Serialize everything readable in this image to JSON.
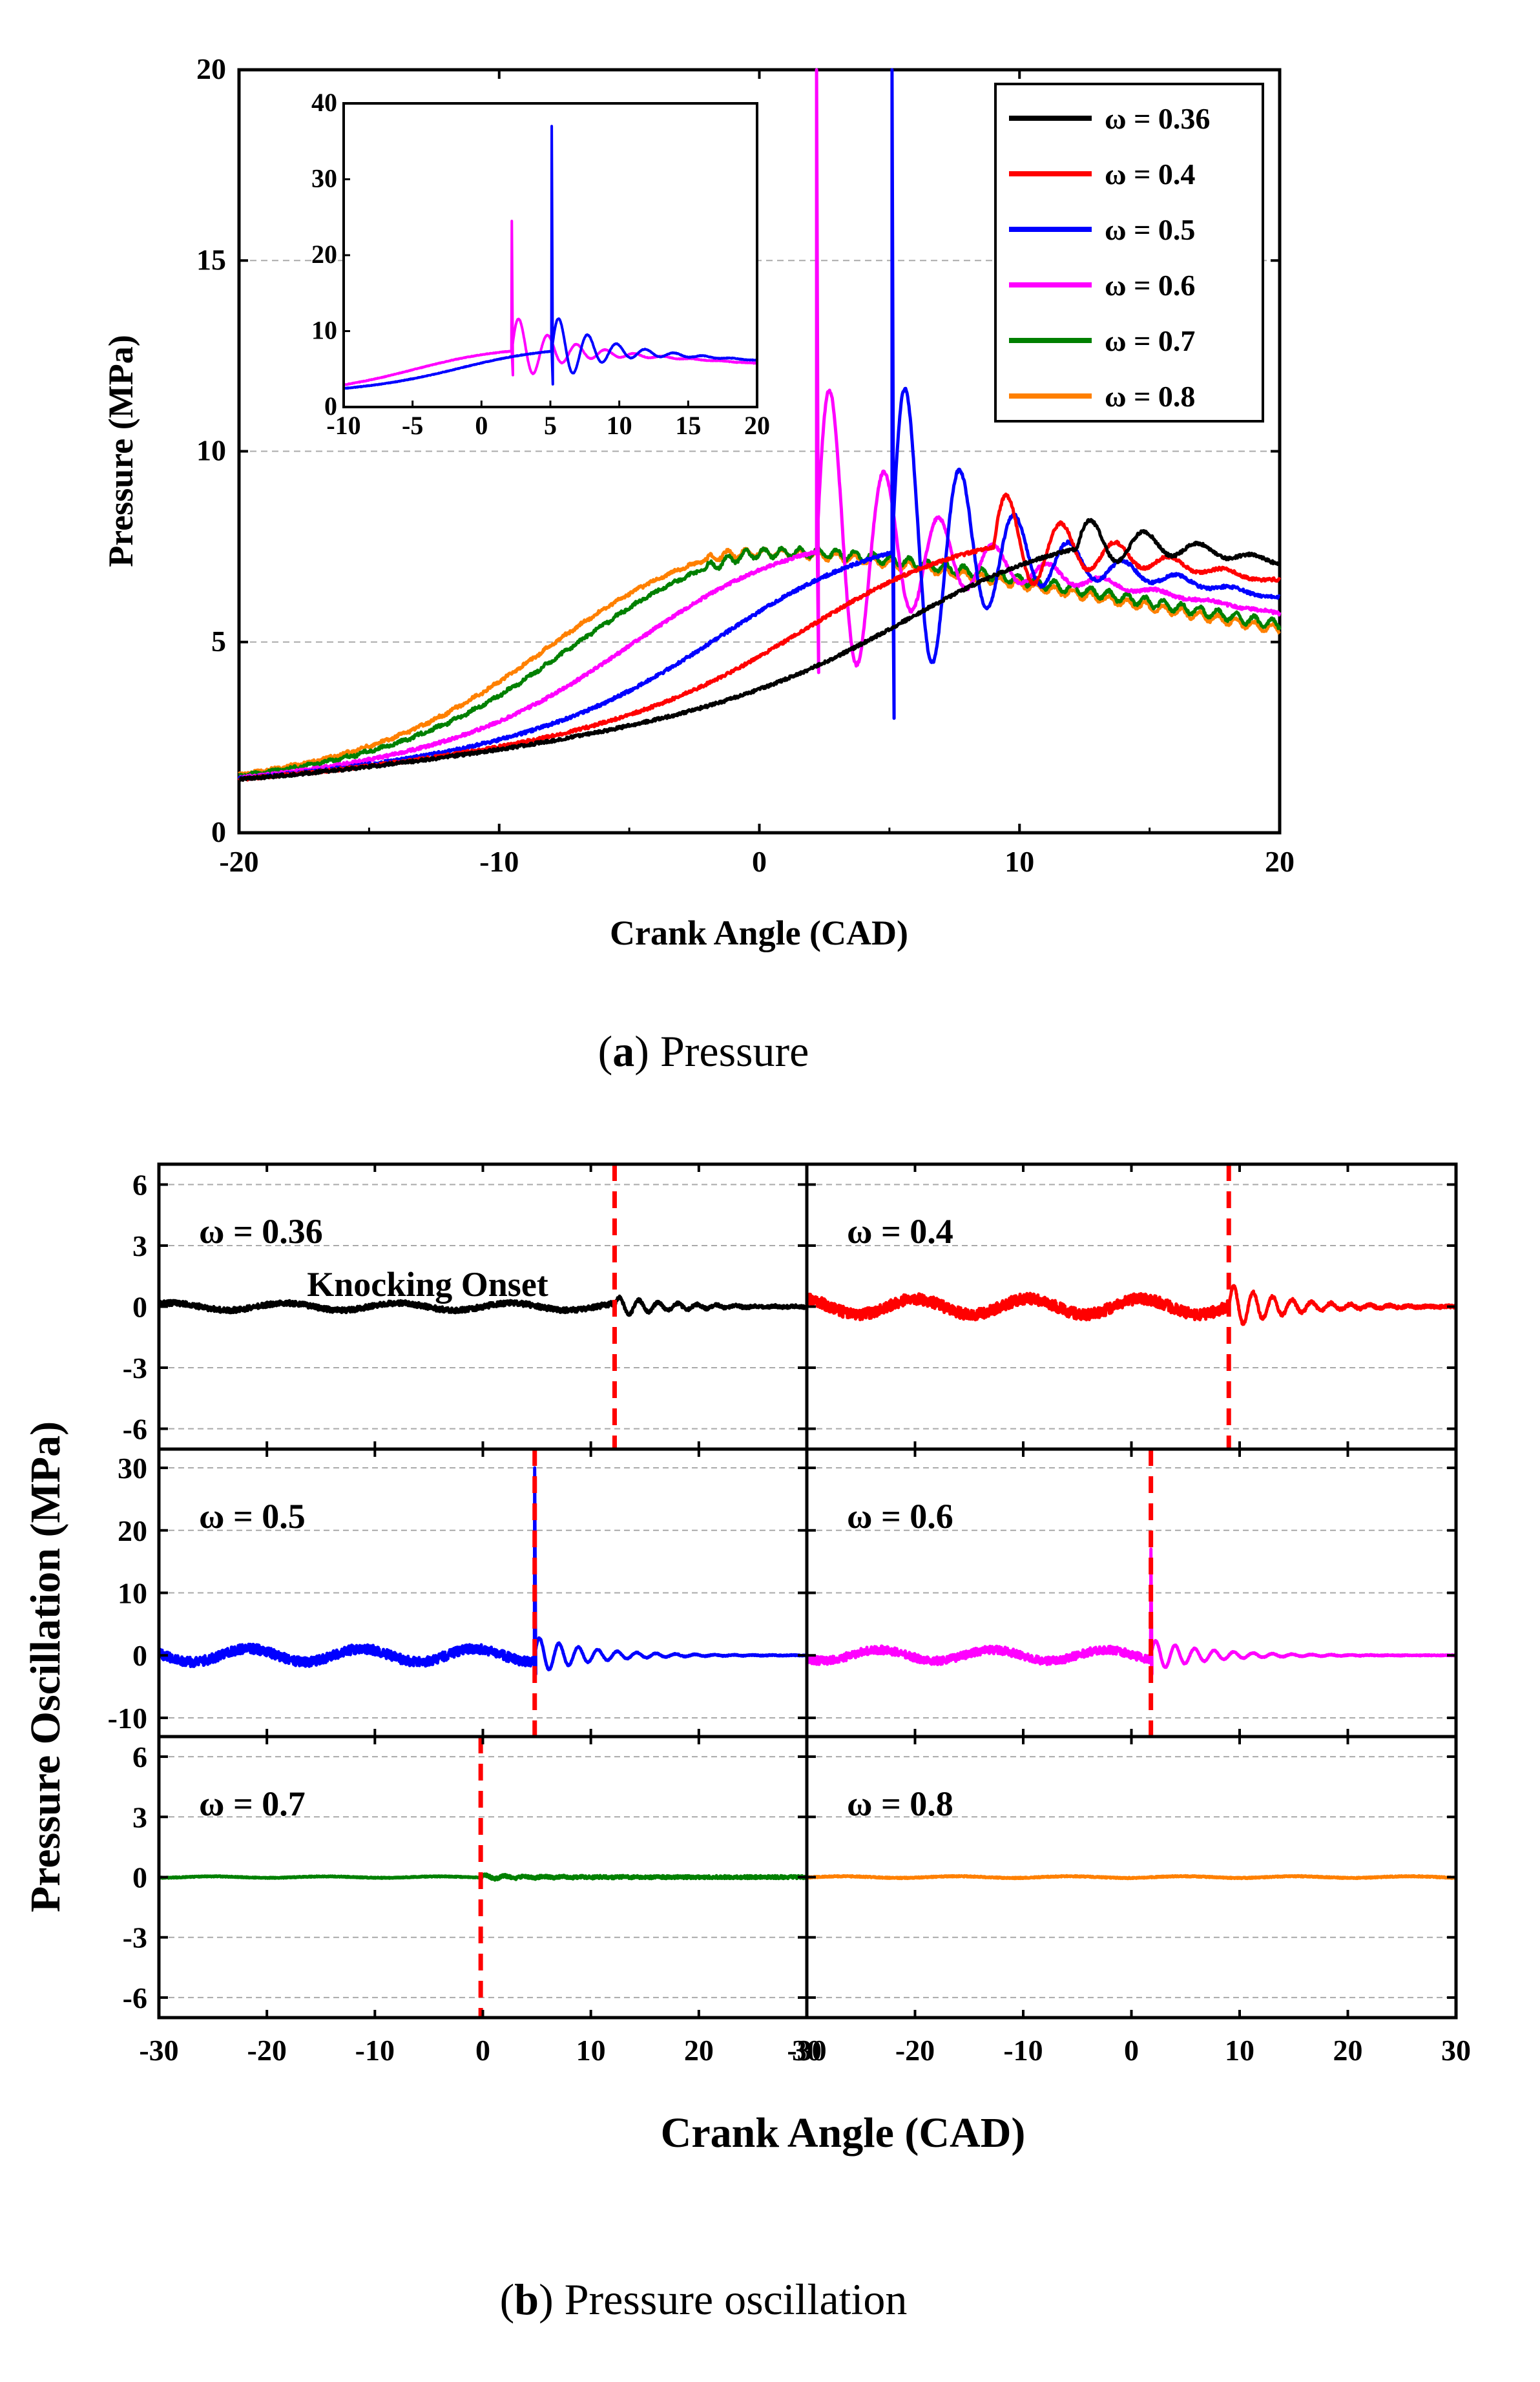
{
  "chart_data": [
    {
      "type": "line",
      "panel": "a",
      "caption_label": "a",
      "caption_text": "Pressure",
      "xlabel": "Crank Angle (CAD)",
      "ylabel": "Pressure (MPa)",
      "xlim": [
        -20,
        20
      ],
      "ylim": [
        0,
        20
      ],
      "xticks": [
        -20,
        -10,
        0,
        10,
        20
      ],
      "yticks": [
        0,
        5,
        10,
        15,
        20
      ],
      "grid": "horizontal dashed",
      "legend_position": "top-right",
      "series": [
        {
          "name": "ω = 0.36",
          "omega": 0.36,
          "color": "#000000",
          "knock_onset": 12.2,
          "peak_shift": 13.3,
          "knock_amp": 0.8
        },
        {
          "name": "ω = 0.4",
          "omega": 0.4,
          "color": "#ff0000",
          "knock_onset": 9.0,
          "peak_shift": 9.0,
          "knock_amp": 1.6
        },
        {
          "name": "ω = 0.5",
          "omega": 0.5,
          "color": "#0000ff",
          "knock_onset": 5.1,
          "peak_shift": 5.5,
          "knock_amp": 5
        },
        {
          "name": "ω = 0.6",
          "omega": 0.6,
          "color": "#ff00ff",
          "knock_onset": 2.2,
          "peak_shift": 2.0,
          "knock_amp": 5
        },
        {
          "name": "ω = 0.7",
          "omega": 0.7,
          "color": "#008000",
          "knock_onset": null,
          "peak_shift": -0.5,
          "knock_amp": 0.3
        },
        {
          "name": "ω = 0.8",
          "omega": 0.8,
          "color": "#ff8000",
          "knock_onset": null,
          "peak_shift": -1.5,
          "knock_amp": 0.25
        }
      ],
      "inset": {
        "xlim": [
          -10,
          20
        ],
        "ylim": [
          0,
          40
        ],
        "xticks": [
          -10,
          -5,
          0,
          5,
          10,
          15,
          20
        ],
        "yticks": [
          0,
          10,
          20,
          30,
          40
        ],
        "series_shown": [
          "ω = 0.5",
          "ω = 0.6"
        ],
        "peak_values": {
          "ω = 0.5": 37,
          "ω = 0.6": 24.5
        }
      }
    },
    {
      "type": "line",
      "panel": "b",
      "caption_label": "b",
      "caption_text": "Pressure oscillation",
      "xlabel": "Crank Angle (CAD)",
      "ylabel": "Pressure Oscillation (MPa)",
      "xlim": [
        -30,
        30
      ],
      "xticks": [
        -30,
        -20,
        -10,
        0,
        10,
        20,
        30
      ],
      "annotation": "Knocking Onset",
      "subplots": [
        {
          "label": "ω = 0.36",
          "color": "#000000",
          "ylim": [
            -7,
            7
          ],
          "yticks": [
            -6,
            -3,
            0,
            3,
            6
          ],
          "onset": 12.2,
          "spike": 0.6,
          "ring": 0.5
        },
        {
          "label": "ω = 0.4",
          "color": "#ff0000",
          "ylim": [
            -7,
            7
          ],
          "yticks": [
            -6,
            -3,
            0,
            3,
            6
          ],
          "onset": 9.0,
          "spike": 1.5,
          "ring": 1.1
        },
        {
          "label": "ω = 0.5",
          "color": "#0000ff",
          "ylim": [
            -13,
            33
          ],
          "yticks": [
            -10,
            0,
            10,
            20,
            30
          ],
          "onset": 4.8,
          "spike": 30,
          "ring": 3
        },
        {
          "label": "ω = 0.6",
          "color": "#ff00ff",
          "ylim": [
            -13,
            33
          ],
          "yticks": [
            -10,
            0,
            10,
            20,
            30
          ],
          "onset": 1.8,
          "spike": 17,
          "ring": 2.5
        },
        {
          "label": "ω = 0.7",
          "color": "#008000",
          "ylim": [
            -7,
            7
          ],
          "yticks": [
            -6,
            -3,
            0,
            3,
            6
          ],
          "onset": -0.2,
          "spike": 0.4,
          "ring": 0.1
        },
        {
          "label": "ω = 0.8",
          "color": "#ff8000",
          "ylim": [
            -7,
            7
          ],
          "yticks": [
            -6,
            -3,
            0,
            3,
            6
          ],
          "onset": null,
          "spike": 0,
          "ring": 0.12
        }
      ]
    }
  ]
}
